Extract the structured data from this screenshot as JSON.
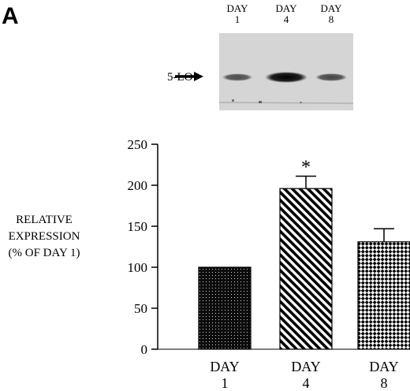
{
  "figure": {
    "panel_letter": "A",
    "blot": {
      "lane_labels": [
        {
          "top": "DAY",
          "bottom": "1"
        },
        {
          "top": "DAY",
          "bottom": "4"
        },
        {
          "top": "DAY",
          "bottom": "8"
        }
      ],
      "band_label": "5-LO",
      "band_intensity": [
        0.45,
        1.0,
        0.5
      ]
    }
  },
  "chart_data": {
    "type": "bar",
    "categories": [
      {
        "top": "DAY",
        "bottom": "1"
      },
      {
        "top": "DAY",
        "bottom": "4"
      },
      {
        "top": "DAY",
        "bottom": "8"
      }
    ],
    "values": [
      100,
      196,
      131
    ],
    "errors": [
      0,
      15,
      16
    ],
    "patterns": [
      "dots",
      "diagonal-stripes",
      "checker"
    ],
    "significance": [
      "",
      "*",
      ""
    ],
    "ylabel_lines": [
      "RELATIVE",
      "EXPRESSION",
      "(% OF DAY 1)"
    ],
    "ylim": [
      0,
      250
    ],
    "yticks": [
      0,
      50,
      100,
      150,
      200,
      250
    ],
    "grid": false
  }
}
